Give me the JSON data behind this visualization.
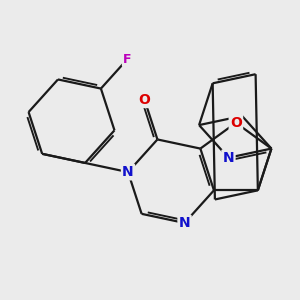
{
  "bg_color": "#ebebeb",
  "bond_color": "#1a1a1a",
  "bond_lw": 1.6,
  "dbo": 0.09,
  "atom_colors": {
    "O": "#dd0000",
    "N": "#1111cc",
    "F": "#bb00bb",
    "C": "#1a1a1a"
  },
  "font_size": 9.0,
  "fig_size": [
    3.0,
    3.0
  ],
  "dpi": 100
}
